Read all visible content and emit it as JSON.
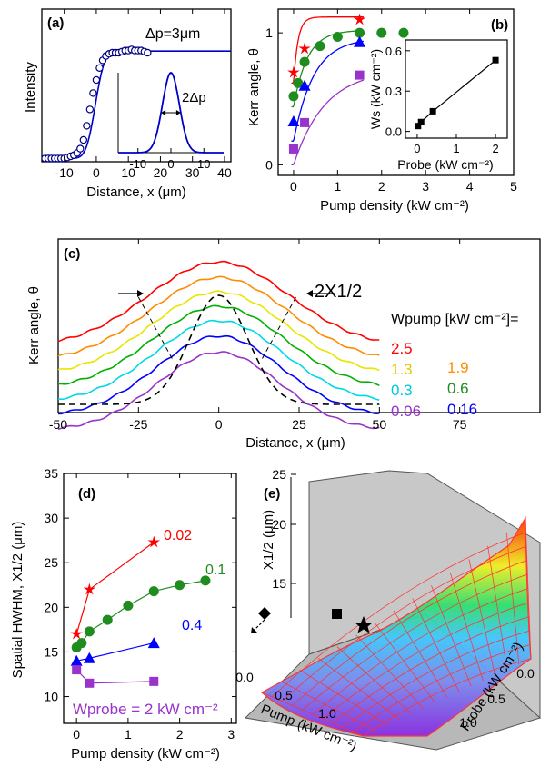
{
  "chart_data": [
    {
      "id": "a",
      "type": "scatter",
      "panel_label": "(a)",
      "xlabel": "Distance, x (μm)",
      "ylabel": "Intensity",
      "xticks": [
        "-10",
        "0",
        "10",
        "20",
        "30",
        "40"
      ],
      "xlim": [
        -17,
        42
      ],
      "annotation": "Δp=3μm",
      "series": [
        {
          "type": "scatter",
          "x": [
            -16,
            -15,
            -14,
            -13,
            -12,
            -11,
            -10,
            -9,
            -8,
            -7,
            -6,
            -5,
            -4,
            -3,
            -2,
            -1,
            0,
            1,
            2,
            3,
            4,
            5,
            6,
            7,
            8,
            9,
            10,
            11,
            12,
            13,
            14,
            15,
            16
          ],
          "y": [
            0.03,
            0.03,
            0.03,
            0.03,
            0.03,
            0.03,
            0.03,
            0.04,
            0.05,
            0.06,
            0.08,
            0.12,
            0.2,
            0.33,
            0.48,
            0.63,
            0.75,
            0.86,
            0.93,
            0.97,
            0.99,
            1.0,
            1.0,
            1.0,
            1.01,
            1.02,
            1.02,
            1.03,
            1.02,
            1.02,
            1.02,
            1.01,
            1.0
          ]
        },
        {
          "type": "line",
          "x": [
            -17,
            42
          ],
          "y": "erf-fit"
        }
      ],
      "inset": {
        "type": "line",
        "xticks": [
          "-10",
          "0",
          "10"
        ],
        "xlim": [
          -16,
          16
        ],
        "annotation": "2Δp",
        "gaussian_fwhm_um": 6
      }
    },
    {
      "id": "b",
      "type": "scatter",
      "panel_label": "(b)",
      "xlabel": "Pump density (kW cm⁻²)",
      "ylabel": "Kerr angle, θ",
      "xticks": [
        "0",
        "1",
        "2",
        "3",
        "4",
        "5"
      ],
      "yticks": [
        "0",
        "1"
      ],
      "xlim": [
        -0.35,
        5
      ],
      "ylim": [
        -0.08,
        1.18
      ],
      "series": [
        {
          "name": "0.02",
          "color": "#ff0000",
          "marker": "star",
          "x": [
            0,
            0.25,
            1.5
          ],
          "y": [
            0.7,
            0.88,
            1.1
          ]
        },
        {
          "name": "0.1",
          "color": "#1e8c1e",
          "marker": "circle",
          "x": [
            0,
            0.1,
            0.25,
            0.6,
            1.0,
            1.5,
            2.0,
            2.5
          ],
          "y": [
            0.52,
            0.62,
            0.78,
            0.9,
            0.97,
            1.0,
            1.0,
            1.0
          ]
        },
        {
          "name": "0.4",
          "color": "#0000ff",
          "marker": "triangle",
          "x": [
            0,
            0.25,
            1.5
          ],
          "y": [
            0.33,
            0.6,
            0.93
          ]
        },
        {
          "name": "2",
          "color": "#9933cc",
          "marker": "square",
          "x": [
            0,
            0.25,
            1.5
          ],
          "y": [
            0.12,
            0.32,
            0.68
          ]
        }
      ],
      "inset": {
        "type": "line",
        "xlabel": "Probe (kW cm⁻²)",
        "ylabel": "Ws (kW cm⁻²)",
        "xticks": [
          "0",
          "1",
          "2"
        ],
        "yticks": [
          "0.0",
          "0.3",
          "0.6"
        ],
        "xlim": [
          -0.3,
          2.3
        ],
        "ylim": [
          -0.05,
          0.68
        ],
        "x": [
          0.02,
          0.1,
          0.4,
          2.0
        ],
        "y": [
          0.04,
          0.07,
          0.15,
          0.53
        ]
      }
    },
    {
      "id": "c",
      "type": "line",
      "panel_label": "(c)",
      "xlabel": "Distance, x (μm)",
      "ylabel": "Kerr angle, θ",
      "xticks": [
        "-50",
        "-25",
        "0",
        "25",
        "50",
        "75"
      ],
      "xlim": [
        -50,
        100
      ],
      "annotation": "2X1/2",
      "legend_title": "Wpump [kW cm⁻²]=",
      "series": [
        {
          "name": "2.5",
          "color": "#ff0000"
        },
        {
          "name": "1.9",
          "color": "#ff8c00"
        },
        {
          "name": "1.3",
          "color": "#e6e600"
        },
        {
          "name": "0.6",
          "color": "#00b000"
        },
        {
          "name": "0.3",
          "color": "#00d8e8"
        },
        {
          "name": "0.16",
          "color": "#0000ff"
        },
        {
          "name": "0.06",
          "color": "#9933cc"
        },
        {
          "name": "",
          "color": "#000000",
          "dash": true
        }
      ]
    },
    {
      "id": "d",
      "type": "line",
      "panel_label": "(d)",
      "xlabel": "Pump density (kW cm⁻²)",
      "ylabel": "Spatial HWHM, X1/2 (μm)",
      "xticks": [
        "0",
        "1",
        "2",
        "3"
      ],
      "yticks": [
        "10",
        "15",
        "20",
        "25",
        "30",
        "35"
      ],
      "xlim": [
        -0.25,
        3.1
      ],
      "ylim": [
        7,
        35
      ],
      "legend_title": "Wprobe = 2 kW cm⁻²",
      "series": [
        {
          "name": "0.02",
          "color": "#ff0000",
          "marker": "star",
          "x": [
            0,
            0.25,
            1.5
          ],
          "y": [
            17,
            22,
            27.3
          ]
        },
        {
          "name": "0.1",
          "color": "#1e8c1e",
          "marker": "circle",
          "x": [
            0,
            0.1,
            0.25,
            0.6,
            1.0,
            1.5,
            2.0,
            2.5
          ],
          "y": [
            15.5,
            16,
            17.3,
            18.6,
            20.2,
            21.8,
            22.5,
            23
          ]
        },
        {
          "name": "0.4",
          "color": "#0000ff",
          "marker": "triangle",
          "x": [
            0,
            0.25,
            1.5
          ],
          "y": [
            14,
            14.3,
            16
          ]
        },
        {
          "name": "",
          "color": "#9933cc",
          "marker": "square",
          "x": [
            0,
            0.25,
            1.5
          ],
          "y": [
            13,
            11.5,
            11.7
          ]
        }
      ]
    },
    {
      "id": "e",
      "type": "surface",
      "panel_label": "(e)",
      "zlabel": "X1/2 (μm)",
      "xlabel": "Pump (kW cm⁻²)",
      "ylabel": "Probe (kW cm⁻²)",
      "zticks": [
        "15",
        "20",
        "25"
      ],
      "xticks": [
        "0.0",
        "0.5",
        "1.0"
      ],
      "yticks": [
        "0.0",
        "0.5",
        "1.0"
      ]
    }
  ]
}
